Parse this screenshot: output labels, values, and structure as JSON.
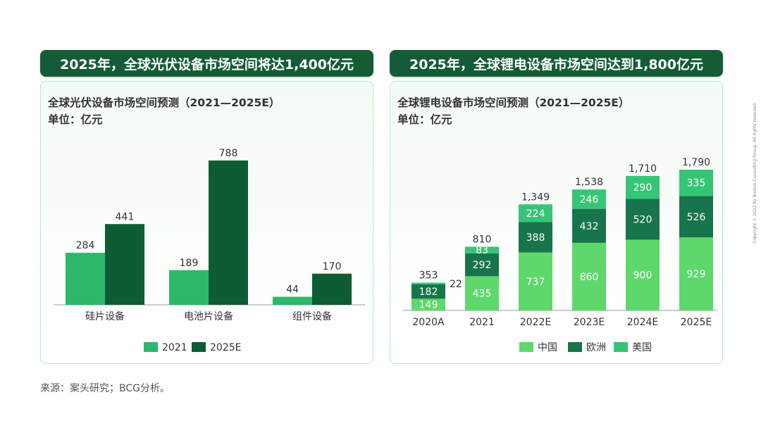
{
  "colors": {
    "title_bg": "#145c35",
    "pv_2021": "#2db869",
    "pv_2025": "#0d5c33",
    "li_china": "#5fd86b",
    "li_europe": "#18744a",
    "li_usa": "#36c576"
  },
  "left": {
    "banner": "2025年，全球光伏设备市场空间将达1,400亿元",
    "chart_title": "全球光伏设备市场空间预测（2021—2025E）",
    "unit": "单位：亿元"
  },
  "right": {
    "banner": "2025年，全球锂电设备市场空间达到1,800亿元",
    "chart_title": "全球锂电设备市场空间预测（2021—2025E）",
    "unit": "单位：亿元"
  },
  "source": "来源：案头研究；BCG分析。",
  "copyright": "Copyright © 2022 by Boston Consulting Group. All rights reserved.",
  "chart_data": [
    {
      "type": "bar",
      "title": "全球光伏设备市场空间预测（2021—2025E）",
      "ylabel": "单位：亿元",
      "categories": [
        "硅片设备",
        "电池片设备",
        "组件设备"
      ],
      "series": [
        {
          "name": "2021",
          "values": [
            284,
            189,
            44
          ]
        },
        {
          "name": "2025E",
          "values": [
            441,
            788,
            170
          ]
        }
      ],
      "ylim": [
        0,
        788
      ],
      "legend": "bottom"
    },
    {
      "type": "bar",
      "stacked": true,
      "title": "全球锂电设备市场空间预测（2021—2025E）",
      "ylabel": "单位：亿元",
      "categories": [
        "2020A",
        "2021",
        "2022E",
        "2023E",
        "2024E",
        "2025E"
      ],
      "series": [
        {
          "name": "中国",
          "values": [
            149,
            435,
            737,
            860,
            900,
            929
          ]
        },
        {
          "name": "欧洲",
          "values": [
            182,
            292,
            388,
            432,
            520,
            526
          ]
        },
        {
          "name": "美国",
          "values": [
            22,
            83,
            224,
            246,
            290,
            335
          ]
        }
      ],
      "totals": [
        "353",
        "810",
        "1,349",
        "1,538",
        "1,710",
        "1,790"
      ],
      "ylim": [
        0,
        1790
      ],
      "legend": "bottom"
    }
  ]
}
